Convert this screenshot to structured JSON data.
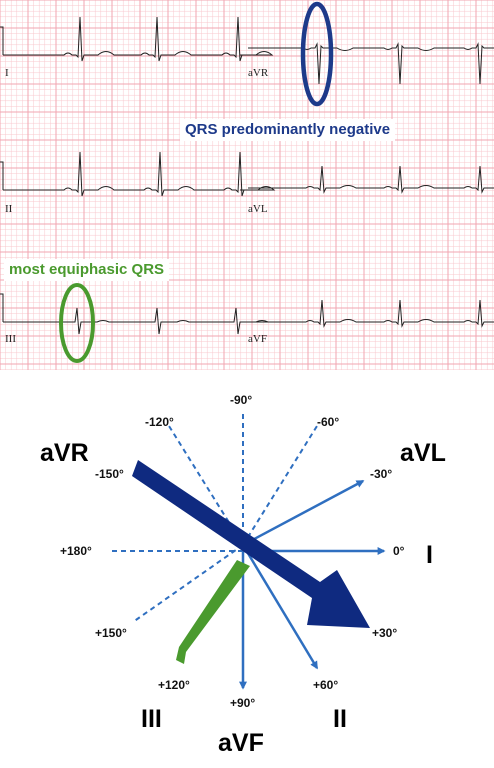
{
  "ecg": {
    "leads": [
      "I",
      "aVR",
      "II",
      "aVL",
      "III",
      "aVF"
    ],
    "callouts": {
      "negative": "QRS predominantly negative",
      "equiphasic": "most equiphasic QRS"
    },
    "colors": {
      "grid": "#f2a6b0",
      "negative": "#1d3a8a",
      "equiphasic": "#4a9a2e"
    }
  },
  "axis": {
    "degree_labels": [
      "-90°",
      "-60°",
      "-30°",
      "0°",
      "+30°",
      "+60°",
      "+90°",
      "+120°",
      "+150°",
      "+180°",
      "-150°",
      "-120°"
    ],
    "lead_labels": {
      "aVR": "aVR",
      "aVL": "aVL",
      "I": "I",
      "II": "II",
      "III": "III",
      "aVF": "aVF"
    },
    "colors": {
      "solid": "#2f6fc0",
      "dashed": "#2f6fc0",
      "big_arrow": "#0f2a80",
      "green_bar": "#4a9a2e"
    }
  }
}
